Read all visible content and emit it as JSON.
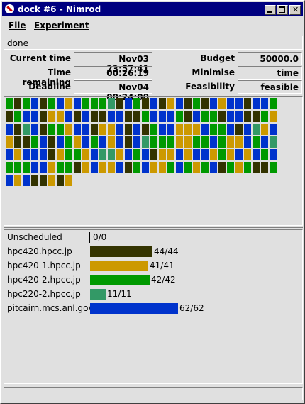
{
  "window": {
    "title": "dock #6 - Nimrod"
  },
  "menu": [
    "File",
    "Experiment"
  ],
  "status": "done",
  "info": {
    "left": [
      {
        "label": "Current time",
        "value": "Nov03 23:57:41"
      },
      {
        "label": "Time remaining",
        "value": "00:26:19"
      },
      {
        "label": "Deadline",
        "value": "Nov04 00:24:00"
      }
    ],
    "right": [
      {
        "label": "Budget",
        "value": "50000.0"
      },
      {
        "label": "Minimise",
        "value": "time"
      },
      {
        "label": "Feasibility",
        "value": "feasible"
      }
    ]
  },
  "hosts": [
    {
      "name": "Unscheduled",
      "label": "0/0",
      "jobs": 0,
      "color": "#808080"
    },
    {
      "name": "hpc420.hpcc.jp",
      "label": "44/44",
      "jobs": 44,
      "color": "#333300"
    },
    {
      "name": "hpc420-1.hpcc.jp",
      "label": "41/41",
      "jobs": 41,
      "color": "#cc9900"
    },
    {
      "name": "hpc420-2.hpcc.jp",
      "label": "42/42",
      "jobs": 42,
      "color": "#009900"
    },
    {
      "name": "hpc220-2.hpcc.jp",
      "label": "11/11",
      "jobs": 11,
      "color": "#339966"
    },
    {
      "name": "pitcairn.mcs.anl.gov",
      "label": "62/62",
      "jobs": 62,
      "color": "#0033cc"
    }
  ],
  "jobs": [
    3,
    1,
    3,
    5,
    1,
    3,
    5,
    2,
    5,
    3,
    3,
    3,
    4,
    1,
    5,
    3,
    1,
    5,
    1,
    2,
    5,
    1,
    3,
    1,
    5,
    2,
    5,
    5,
    1,
    5,
    5,
    3,
    1,
    3,
    5,
    5,
    1,
    2,
    2,
    5,
    1,
    5,
    1,
    1,
    5,
    5,
    1,
    1,
    3,
    5,
    5,
    5,
    3,
    1,
    5,
    3,
    3,
    1,
    5,
    5,
    1,
    1,
    3,
    2,
    5,
    1,
    4,
    5,
    1,
    3,
    3,
    2,
    5,
    5,
    1,
    2,
    2,
    5,
    1,
    5,
    1,
    3,
    5,
    5,
    2,
    2,
    2,
    5,
    3,
    3,
    5,
    1,
    5,
    4,
    2,
    5,
    2,
    1,
    1,
    3,
    5,
    1,
    5,
    3,
    2,
    5,
    3,
    5,
    2,
    5,
    1,
    5,
    4,
    3,
    3,
    3,
    2,
    2,
    3,
    3,
    5,
    3,
    2,
    2,
    5,
    3,
    5,
    4,
    5,
    2,
    5,
    5,
    5,
    1,
    2,
    3,
    3,
    2,
    5,
    4,
    4,
    2,
    5,
    3,
    5,
    1,
    2,
    2,
    5,
    2,
    5,
    5,
    2,
    3,
    2,
    5,
    2,
    5,
    3,
    5,
    3,
    3,
    3,
    5,
    5,
    2,
    3,
    3,
    1,
    2,
    5,
    2,
    2,
    5,
    1,
    3,
    5,
    2,
    2,
    3,
    5,
    3,
    2,
    3,
    5,
    1,
    3,
    2,
    3,
    1,
    1,
    3,
    5,
    2,
    5,
    1,
    1,
    2,
    1,
    2
  ]
}
